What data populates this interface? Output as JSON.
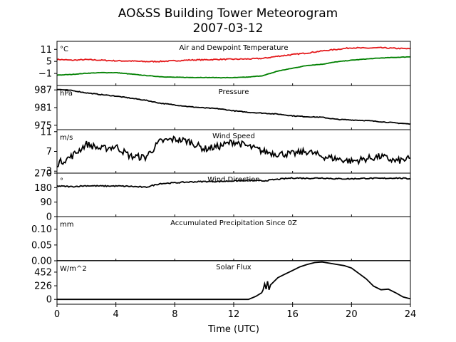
{
  "figure": {
    "title": "AO&SS Building Tower Meteorogram",
    "subtitle": "2007-03-12",
    "xlabel": "Time (UTC)"
  },
  "chart_data": {
    "type": "line",
    "x_range": [
      0,
      24
    ],
    "x_ticks": [
      0,
      4,
      8,
      12,
      16,
      20,
      24
    ],
    "grid": false,
    "panels": [
      {
        "id": "temp",
        "title": "Air and Dewpoint Temperature",
        "unit": "°C",
        "ylim": [
          -7,
          15
        ],
        "yticks": [
          {
            "v": 11,
            "label": "11"
          },
          {
            "v": 5,
            "label": "5"
          },
          {
            "v": -1,
            "label": "−1"
          }
        ],
        "series": [
          {
            "color": "#e41a1c",
            "noise": 0.25,
            "x": [
              0,
              1,
              2,
              3,
              4,
              5,
              6,
              7,
              8,
              9,
              10,
              11,
              12,
              13,
              14,
              15,
              16,
              17,
              18,
              19,
              20,
              21,
              22,
              23,
              24
            ],
            "values": [
              6.0,
              5.6,
              5.9,
              5.6,
              5.3,
              5.2,
              4.9,
              5.0,
              5.3,
              5.7,
              5.8,
              6.0,
              6.1,
              6.2,
              6.5,
              7.6,
              8.4,
              9.2,
              10.2,
              11.0,
              11.8,
              11.6,
              11.8,
              11.5,
              11.3
            ]
          },
          {
            "color": "#008000",
            "noise": 0.1,
            "x": [
              0,
              1,
              2,
              3,
              4,
              5,
              6,
              7,
              8,
              9,
              10,
              11,
              12,
              13,
              14,
              15,
              16,
              17,
              18,
              19,
              20,
              21,
              22,
              23,
              24
            ],
            "values": [
              -1.8,
              -1.5,
              -0.9,
              -0.6,
              -0.6,
              -1.3,
              -2.0,
              -2.6,
              -2.9,
              -3.0,
              -3.0,
              -3.1,
              -3.1,
              -2.8,
              -2.1,
              0.2,
              1.6,
              3.0,
              3.6,
              4.8,
              5.6,
              6.2,
              6.7,
              7.0,
              7.3
            ]
          }
        ]
      },
      {
        "id": "pressure",
        "title": "Pressure",
        "unit": "hPa",
        "ylim": [
          973.5,
          988.5
        ],
        "yticks": [
          {
            "v": 987,
            "label": "987"
          },
          {
            "v": 981,
            "label": "981"
          },
          {
            "v": 975,
            "label": "975"
          }
        ],
        "series": [
          {
            "color": "#000000",
            "noise": 0.12,
            "x": [
              0,
              1,
              2,
              3,
              4,
              5,
              6,
              7,
              8,
              9,
              10,
              11,
              12,
              13,
              14,
              15,
              16,
              17,
              18,
              19,
              20,
              21,
              22,
              23,
              24
            ],
            "values": [
              987.2,
              986.8,
              986.0,
              985.4,
              984.9,
              984.2,
              983.5,
              982.5,
              981.9,
              981.3,
              980.9,
              980.6,
              979.9,
              979.4,
              979.1,
              978.8,
              978.2,
              977.9,
              977.7,
              977.0,
              976.8,
              976.6,
              976.2,
              975.8,
              975.4
            ]
          }
        ]
      },
      {
        "id": "wind_speed",
        "title": "Wind Speed",
        "unit": "m/s",
        "ylim": [
          2.6,
          11.4
        ],
        "yticks": [
          {
            "v": 11,
            "label": "11"
          },
          {
            "v": 7,
            "label": "7"
          },
          {
            "v": 3,
            "label": "3"
          }
        ],
        "series": [
          {
            "color": "#000000",
            "noise": 0.7,
            "x": [
              0,
              1,
              2,
              3,
              4,
              5,
              6,
              7,
              8,
              9,
              10,
              11,
              12,
              13,
              14,
              15,
              16,
              17,
              18,
              19,
              20,
              21,
              22,
              23,
              24
            ],
            "values": [
              4.5,
              6.0,
              8.5,
              7.5,
              8.0,
              6.0,
              5.8,
              9.0,
              9.5,
              9.0,
              7.5,
              8.0,
              9.0,
              8.0,
              7.0,
              6.5,
              6.5,
              7.0,
              6.0,
              5.5,
              5.0,
              5.5,
              6.0,
              5.0,
              5.5
            ]
          }
        ]
      },
      {
        "id": "wind_dir",
        "title": "Wind Direction",
        "unit": "°",
        "ylim": [
          0,
          270
        ],
        "yticks": [
          {
            "v": 270,
            "label": "270"
          },
          {
            "v": 180,
            "label": "180"
          },
          {
            "v": 90,
            "label": "90"
          },
          {
            "v": 0,
            "label": "0"
          }
        ],
        "series": [
          {
            "color": "#000000",
            "noise": 3.5,
            "x": [
              0,
              1,
              2,
              3,
              4,
              5,
              6,
              7,
              8,
              9,
              10,
              11,
              12,
              13,
              14,
              15,
              16,
              17,
              18,
              19,
              20,
              21,
              22,
              23,
              24
            ],
            "values": [
              190,
              186,
              192,
              190,
              190,
              188,
              182,
              205,
              210,
              215,
              218,
              218,
              222,
              225,
              222,
              232,
              240,
              238,
              240,
              235,
              235,
              238,
              237,
              240,
              235
            ]
          }
        ]
      },
      {
        "id": "precip",
        "title": "Accumulated Precipitation Since 0Z",
        "unit": "mm",
        "ylim": [
          0,
          0.14
        ],
        "yticks": [
          {
            "v": 0.1,
            "label": "0.10"
          },
          {
            "v": 0.05,
            "label": "0.05"
          },
          {
            "v": 0,
            "label": "0.00"
          }
        ],
        "series": [
          {
            "color": "#000000",
            "noise": 0,
            "x": [
              0,
              24
            ],
            "values": [
              0,
              0
            ]
          }
        ]
      },
      {
        "id": "solar",
        "title": "Solar Flux",
        "unit": "W/m^2",
        "ylim": [
          -80,
          640
        ],
        "yticks": [
          {
            "v": 452,
            "label": "452"
          },
          {
            "v": 226,
            "label": "226"
          },
          {
            "v": 0,
            "label": "0"
          }
        ],
        "series": [
          {
            "color": "#000000",
            "noise": 0,
            "x": [
              0,
              13,
              13.5,
              13.9,
              14.0,
              14.1,
              14.2,
              14.3,
              14.4,
              14.5,
              15,
              15.5,
              16,
              16.5,
              17,
              17.5,
              18,
              18.5,
              19,
              19.5,
              20,
              20.5,
              21,
              21.5,
              22,
              22.5,
              23,
              23.5,
              24
            ],
            "values": [
              0,
              0,
              50,
              110,
              160,
              260,
              170,
              300,
              160,
              240,
              360,
              420,
              480,
              540,
              580,
              610,
              620,
              600,
              580,
              560,
              520,
              430,
              340,
              220,
              160,
              170,
              110,
              40,
              10
            ]
          }
        ]
      }
    ]
  }
}
